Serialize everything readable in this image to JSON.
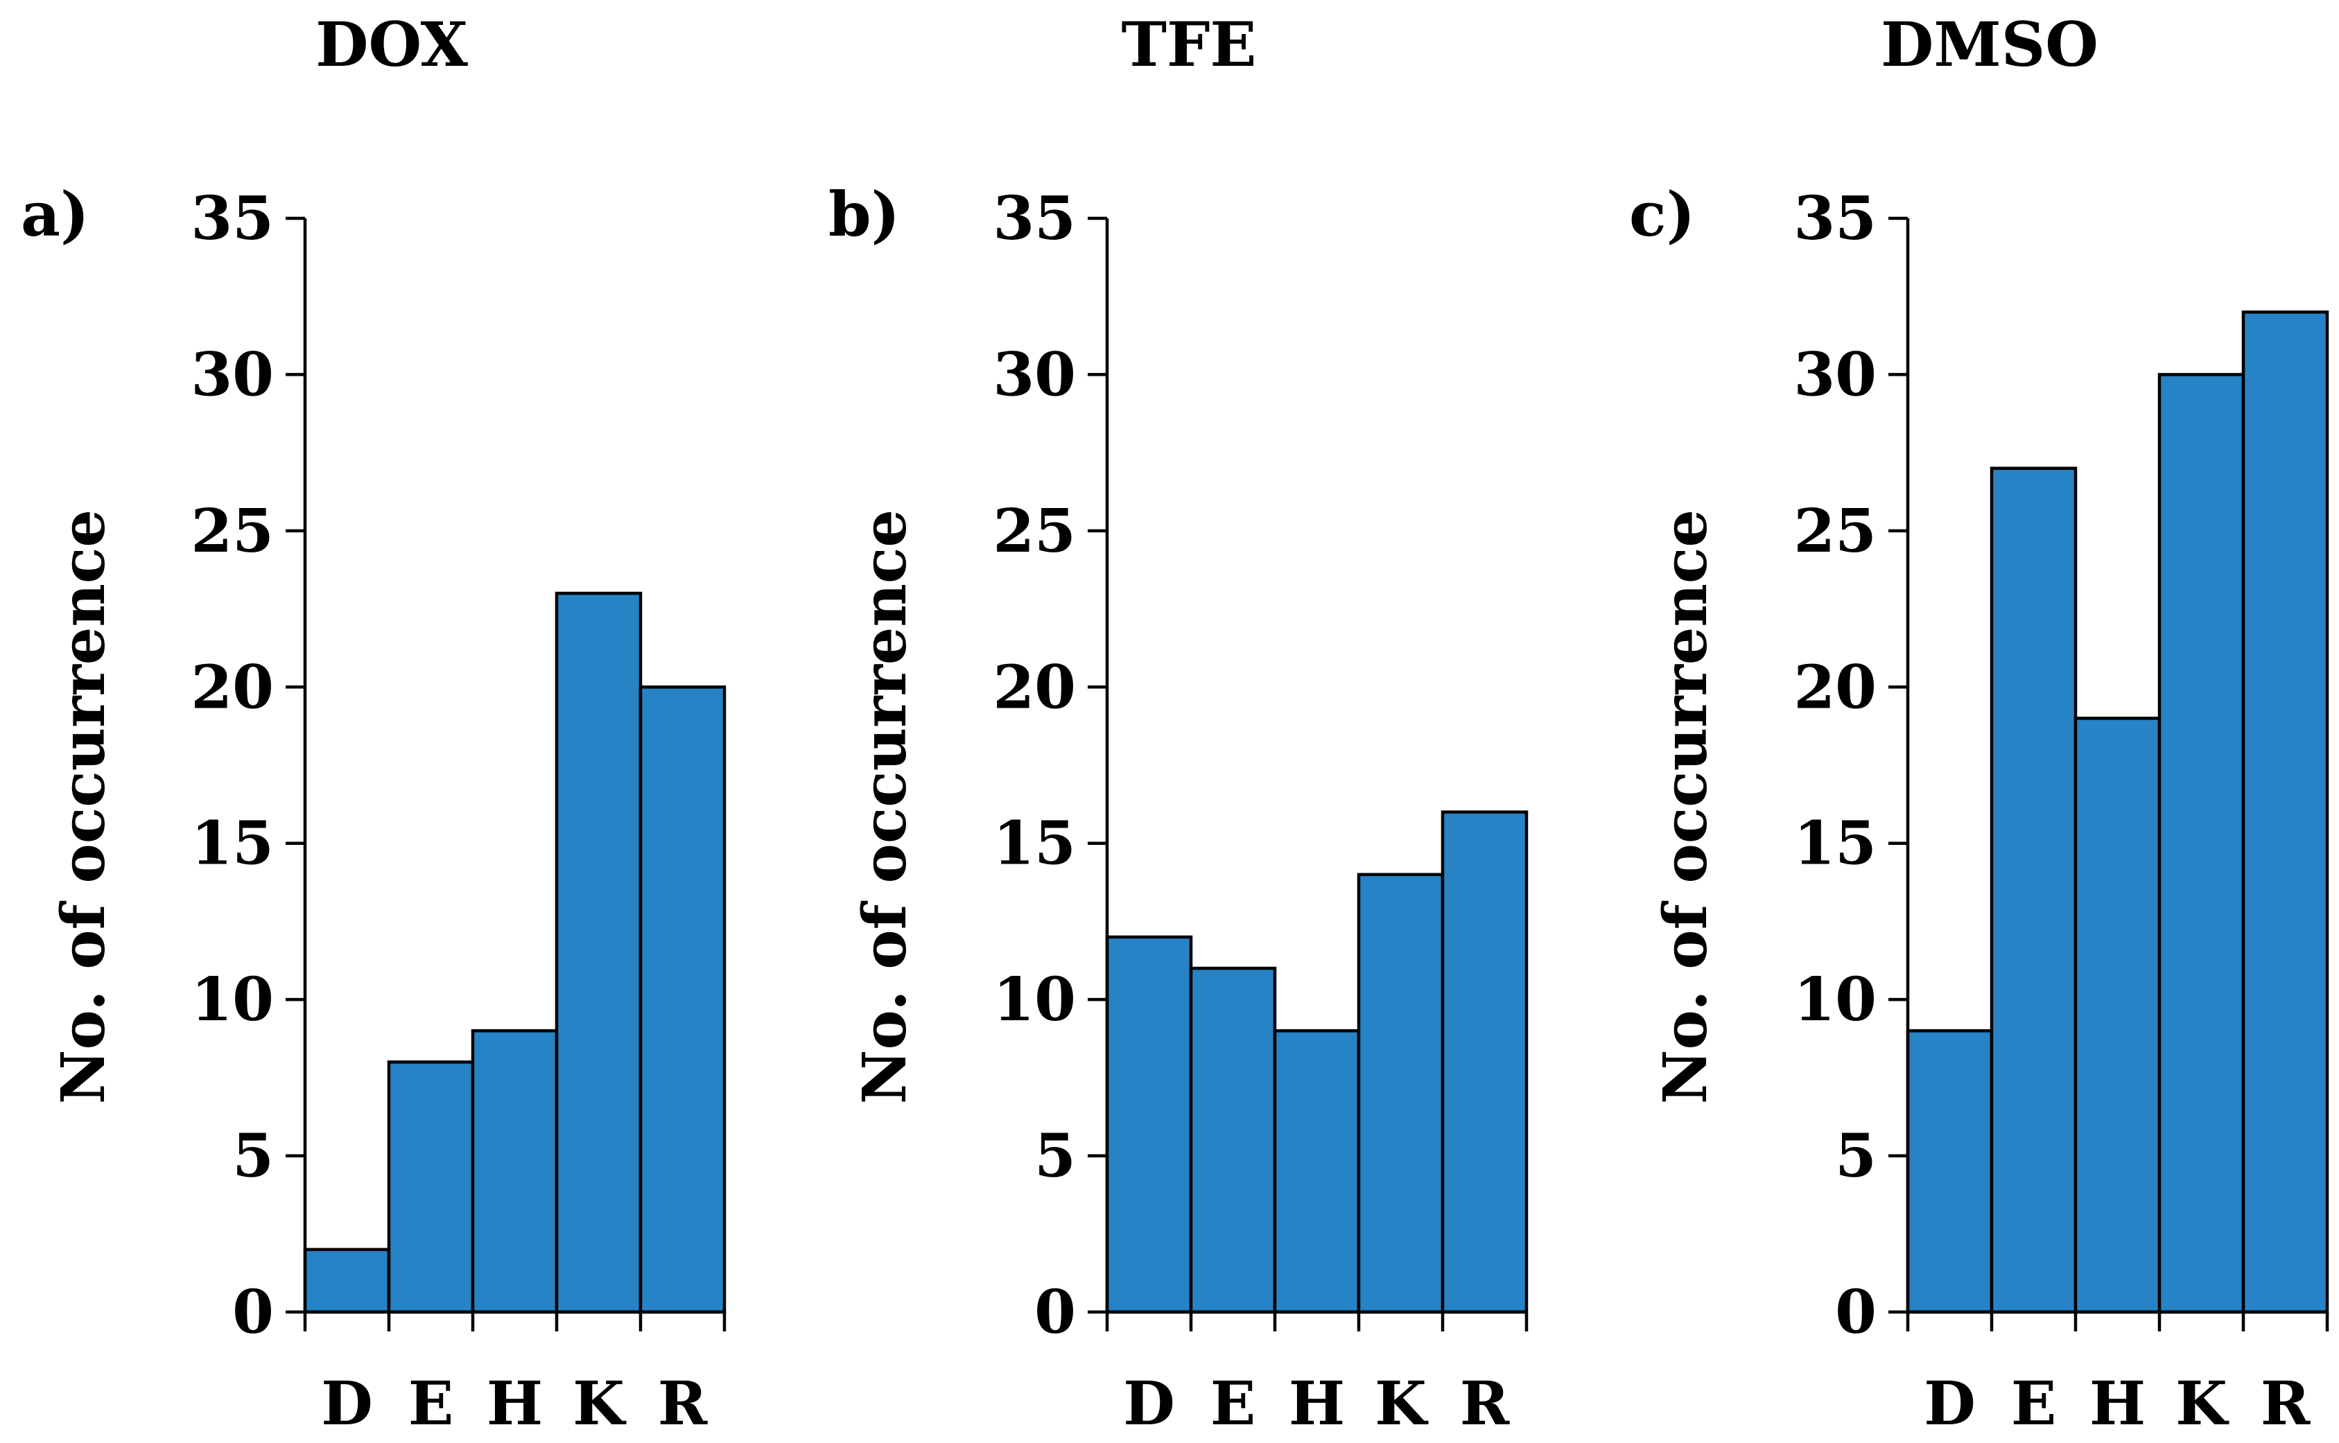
{
  "colors": {
    "bar_fill": "#2683C6",
    "bar_outline": "#000000",
    "axis": "#000000",
    "text": "#000000",
    "background": "#ffffff"
  },
  "chart_data": [
    {
      "type": "bar",
      "panel_label": "a)",
      "title": "DOX",
      "categories": [
        "D",
        "E",
        "H",
        "K",
        "R"
      ],
      "values": [
        2,
        8,
        9,
        23,
        20
      ],
      "xlabel": "",
      "ylabel": "No. of occurrence",
      "ylim": [
        0,
        35
      ],
      "yticks": [
        "0",
        "5",
        "10",
        "15",
        "20",
        "25",
        "30",
        "35"
      ],
      "grid": false
    },
    {
      "type": "bar",
      "panel_label": "b)",
      "title": "TFE",
      "categories": [
        "D",
        "E",
        "H",
        "K",
        "R"
      ],
      "values": [
        12,
        11,
        9,
        14,
        16
      ],
      "xlabel": "",
      "ylabel": "No. of occurrence",
      "ylim": [
        0,
        35
      ],
      "yticks": [
        "0",
        "5",
        "10",
        "15",
        "20",
        "25",
        "30",
        "35"
      ],
      "grid": false
    },
    {
      "type": "bar",
      "panel_label": "c)",
      "title": "DMSO",
      "categories": [
        "D",
        "E",
        "H",
        "K",
        "R"
      ],
      "values": [
        9,
        27,
        19,
        30,
        32
      ],
      "xlabel": "",
      "ylabel": "No. of occurrence",
      "ylim": [
        0,
        35
      ],
      "yticks": [
        "0",
        "5",
        "10",
        "15",
        "20",
        "25",
        "30",
        "35"
      ],
      "grid": false
    }
  ]
}
